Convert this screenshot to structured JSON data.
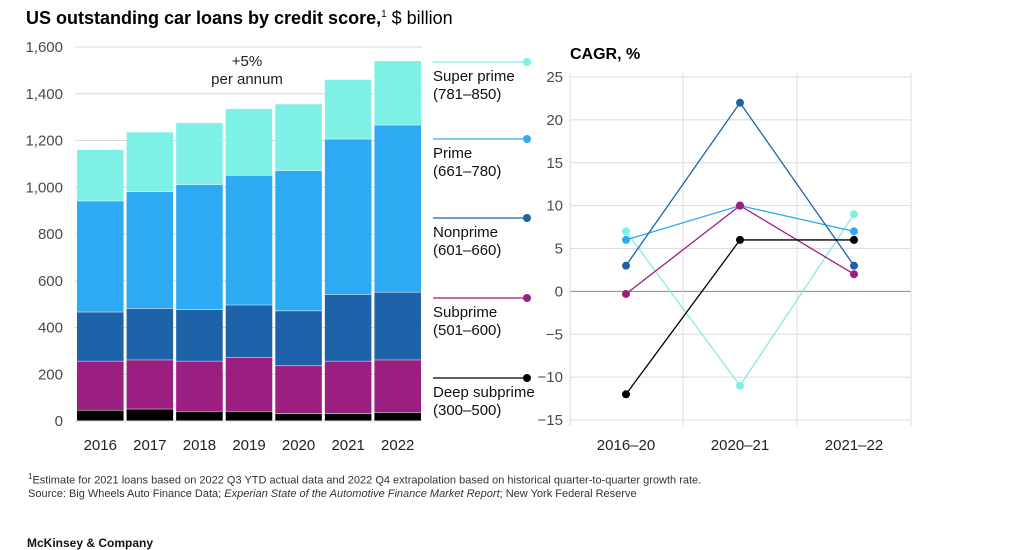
{
  "title": {
    "main": "US outstanding car loans by credit score,",
    "sup": "1",
    "unit": " $ billion"
  },
  "colors": {
    "super_prime": "#7ef0e6",
    "prime": "#2eaaf5",
    "nonprime": "#1e63aa",
    "subprime": "#9b1f80",
    "deep_subprime": "#000000"
  },
  "chart_data": [
    {
      "type": "bar",
      "stacked": true,
      "title": "US outstanding car loans by credit score, $ billion",
      "categories": [
        "2016",
        "2017",
        "2018",
        "2019",
        "2020",
        "2021",
        "2022"
      ],
      "y_ticks": [
        "1,600",
        "1,400",
        "1,200",
        "1,000",
        "800",
        "600",
        "400",
        "200",
        "0"
      ],
      "ylim": [
        0,
        1600
      ],
      "annotation": [
        "+5%",
        "per annum"
      ],
      "series": [
        {
          "key": "deep_subprime",
          "name": "Deep subprime",
          "range": "(300–500)",
          "values": [
            45,
            50,
            40,
            40,
            30,
            30,
            35
          ]
        },
        {
          "key": "subprime",
          "name": "Subprime",
          "range": "(501–600)",
          "values": [
            210,
            210,
            215,
            230,
            205,
            225,
            225
          ]
        },
        {
          "key": "nonprime",
          "name": "Nonprime",
          "range": "(601–660)",
          "values": [
            210,
            220,
            220,
            225,
            235,
            285,
            290
          ]
        },
        {
          "key": "prime",
          "name": "Prime",
          "range": "(661–780)",
          "values": [
            475,
            500,
            535,
            555,
            600,
            665,
            715
          ]
        },
        {
          "key": "super_prime",
          "name": "Super prime",
          "range": "(781–850)",
          "values": [
            220,
            255,
            265,
            285,
            285,
            255,
            275
          ]
        }
      ]
    },
    {
      "type": "line",
      "title": "CAGR, %",
      "categories": [
        "2016–20",
        "2020–21",
        "2021–22"
      ],
      "y_ticks": [
        "25",
        "20",
        "15",
        "10",
        "5",
        "0",
        "-5",
        "-10",
        "-15"
      ],
      "ylim": [
        -15,
        25
      ],
      "series": [
        {
          "key": "super_prime",
          "name": "Super prime",
          "values": [
            7,
            -11,
            9
          ]
        },
        {
          "key": "prime",
          "name": "Prime",
          "values": [
            6,
            10,
            7
          ]
        },
        {
          "key": "nonprime",
          "name": "Nonprime",
          "values": [
            3,
            22,
            3
          ]
        },
        {
          "key": "subprime",
          "name": "Subprime",
          "values": [
            -0.3,
            10,
            2
          ]
        },
        {
          "key": "deep_subprime",
          "name": "Deep subprime",
          "values": [
            -12,
            6,
            6
          ]
        }
      ]
    }
  ],
  "footnote": {
    "sup": "1",
    "text": "Estimate for 2021 loans based on 2022 Q3 YTD actual data and 2022 Q4 extrapolation based on historical quarter-to-quarter growth rate.",
    "source_prefix": "Source: Big Wheels Auto Finance Data; ",
    "source_italic": "Experian State of the Automotive Finance Market Report",
    "source_suffix": "; New York Federal Reserve"
  },
  "brand": "McKinsey & Company"
}
